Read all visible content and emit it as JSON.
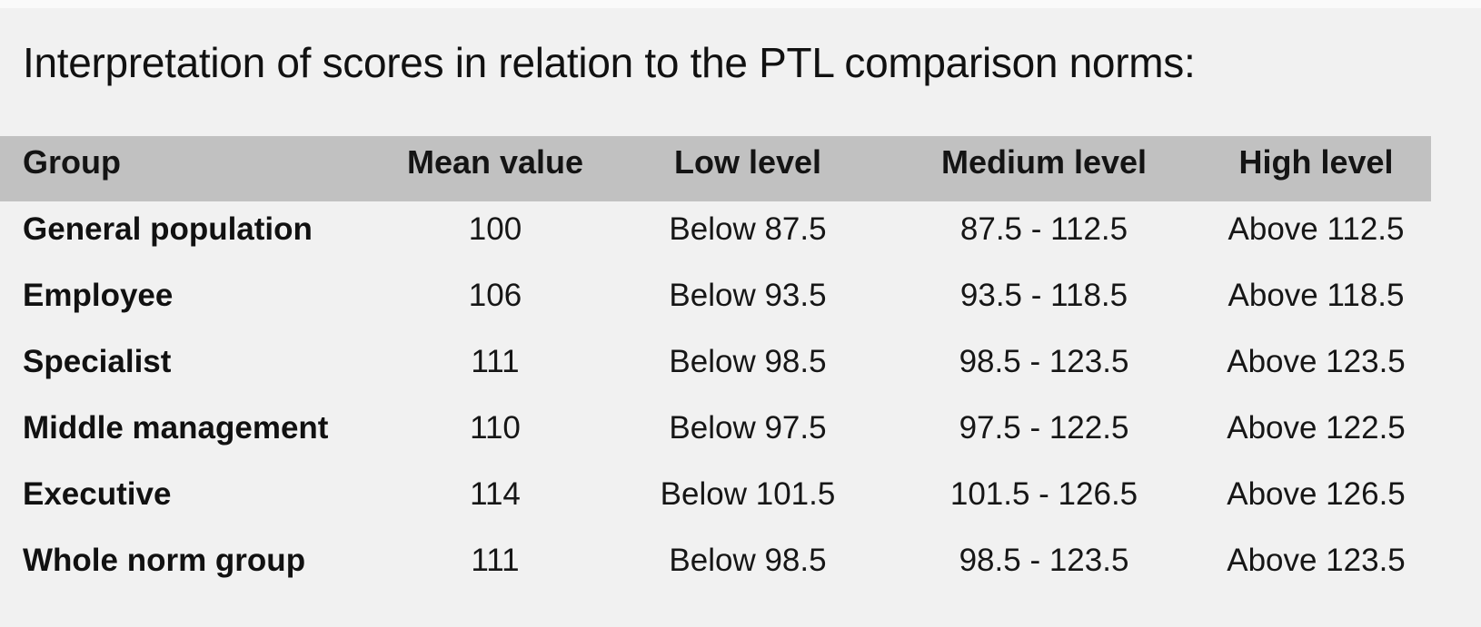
{
  "page": {
    "title": "Interpretation of scores in relation to the PTL comparison norms:"
  },
  "colors": {
    "background": "#f1f1f1",
    "header_row_background": "#c1c1c1",
    "text": "#161616",
    "top_strip": "#fafafa"
  },
  "table": {
    "columns": {
      "group": "Group",
      "mean": "Mean value",
      "low": "Low level",
      "medium": "Medium level",
      "high": "High level"
    },
    "rows": [
      {
        "group": "General population",
        "mean": "100",
        "low": "Below 87.5",
        "medium": "87.5 - 112.5",
        "high": "Above 112.5"
      },
      {
        "group": "Employee",
        "mean": "106",
        "low": "Below 93.5",
        "medium": "93.5 - 118.5",
        "high": "Above 118.5"
      },
      {
        "group": "Specialist",
        "mean": "111",
        "low": "Below 98.5",
        "medium": "98.5 - 123.5",
        "high": "Above 123.5"
      },
      {
        "group": "Middle management",
        "mean": "110",
        "low": "Below 97.5",
        "medium": "97.5 - 122.5",
        "high": "Above 122.5"
      },
      {
        "group": "Executive",
        "mean": "114",
        "low": "Below 101.5",
        "medium": "101.5 - 126.5",
        "high": "Above 126.5"
      },
      {
        "group": "Whole norm group",
        "mean": "111",
        "low": "Below 98.5",
        "medium": "98.5 - 123.5",
        "high": "Above 123.5"
      }
    ]
  }
}
